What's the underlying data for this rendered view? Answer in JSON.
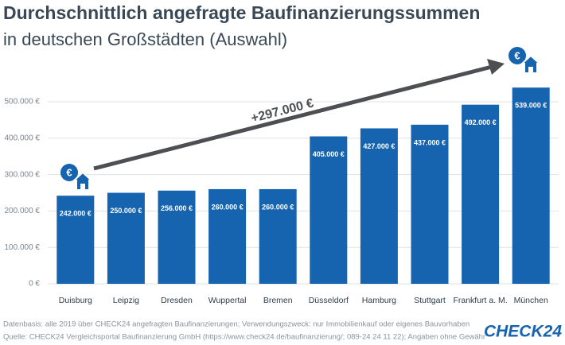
{
  "chart_data": {
    "type": "bar",
    "title": "Durchschnittlich angefragte Baufinanzierungssummen",
    "subtitle": "in deutschen Großstädten (Auswahl)",
    "categories": [
      "Duisburg",
      "Leipzig",
      "Dresden",
      "Wuppertal",
      "Bremen",
      "Düsseldorf",
      "Hamburg",
      "Stuttgart",
      "Frankfurt a. M.",
      "München"
    ],
    "values": [
      242000,
      250000,
      256000,
      260000,
      260000,
      405000,
      427000,
      437000,
      492000,
      539000
    ],
    "value_labels": [
      "242.000 €",
      "250.000 €",
      "256.000 €",
      "260.000 €",
      "260.000 €",
      "405.000 €",
      "427.000 €",
      "437.000 €",
      "492.000 €",
      "539.000 €"
    ],
    "color": "#1663b0",
    "ylim": [
      0,
      580000
    ],
    "yticks": [
      {
        "value": 0,
        "label": "0 €"
      },
      {
        "value": 100000,
        "label": "100.000 €"
      },
      {
        "value": 200000,
        "label": "200.000 €"
      },
      {
        "value": 300000,
        "label": "300.000 €"
      },
      {
        "value": 400000,
        "label": "400.000 €"
      },
      {
        "value": 500000,
        "label": "500.000 €"
      }
    ],
    "grid": true,
    "annotation": "+297.000 €",
    "notes": [
      "Datenbasis: alle 2019 über CHECK24 angefragten Baufinanzierungen; Verwendungszweck: nur Immobilienkauf oder eigenes Bauvorhaben",
      "Quelle: CHECK24 Vergleichsportal Baufinanzierung GmbH (https://www.check24.de/baufinanzierung/; 089-24 24 11 22); Angaben ohne Gewähr"
    ],
    "logo": "CHECK24"
  }
}
